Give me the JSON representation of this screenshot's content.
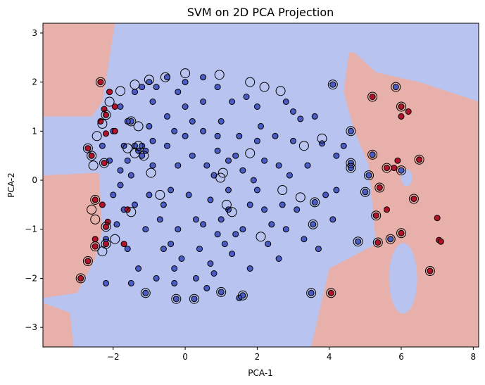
{
  "chart_data": {
    "type": "scatter",
    "title": "SVM on 2D PCA Projection",
    "xlabel": "PCA-1",
    "ylabel": "PCA-2",
    "xlim": [
      -3.95,
      8.15
    ],
    "ylim": [
      -3.4,
      3.2
    ],
    "xticks": [
      -2,
      0,
      2,
      4,
      6,
      8
    ],
    "yticks": [
      -3,
      -2,
      -1,
      0,
      1,
      2,
      3
    ],
    "grid": false,
    "legend": "none",
    "colors": {
      "region_positive": "#e8b0ab",
      "region_negative": "#b8c4ef",
      "class_negative": "#4a5bc4",
      "class_positive": "#b3122b",
      "support_ring": "#000000"
    },
    "cluster_positive_regions": [
      {
        "shape": "left-top-corner",
        "points": [
          [
            -3.95,
            3.2
          ],
          [
            -1.95,
            3.2
          ],
          [
            -2.1,
            2.5
          ],
          [
            -2.3,
            1.6
          ],
          [
            -2.6,
            1.3
          ],
          [
            -3.95,
            1.3
          ]
        ]
      },
      {
        "shape": "left-middle-lower",
        "points": [
          [
            -3.95,
            0.1
          ],
          [
            -2.4,
            0.15
          ],
          [
            -2.3,
            -1.0
          ],
          [
            -2.5,
            -1.6
          ],
          [
            -3.0,
            -2.3
          ],
          [
            -3.95,
            -2.4
          ]
        ]
      },
      {
        "shape": "bottom-left",
        "points": [
          [
            -3.95,
            -3.4
          ],
          [
            -3.95,
            -2.5
          ],
          [
            -3.2,
            -2.7
          ],
          [
            -3.1,
            -3.4
          ]
        ]
      },
      {
        "shape": "right-side",
        "points": [
          [
            4.7,
            2.6
          ],
          [
            5.3,
            2.2
          ],
          [
            6.5,
            2.0
          ],
          [
            8.15,
            1.6
          ],
          [
            8.15,
            -3.4
          ],
          [
            3.5,
            -3.4
          ],
          [
            4.0,
            -1.8
          ],
          [
            5.3,
            -1.3
          ],
          [
            5.1,
            0.3
          ],
          [
            4.7,
            1.0
          ],
          [
            4.4,
            1.8
          ],
          [
            4.55,
            2.6
          ]
        ]
      }
    ],
    "series": [
      {
        "class": "negative",
        "points": [
          [
            4.1,
            1.95
          ],
          [
            4.6,
            1.0
          ],
          [
            5.2,
            0.52
          ],
          [
            5.1,
            0.1
          ],
          [
            4.6,
            0.35
          ],
          [
            5.0,
            -0.24
          ],
          [
            4.8,
            -1.25
          ],
          [
            3.55,
            -0.9
          ],
          [
            3.6,
            -0.45
          ],
          [
            3.5,
            -2.3
          ],
          [
            4.6,
            0.25
          ],
          [
            5.85,
            1.9
          ],
          [
            6.0,
            0.2
          ],
          [
            5.7,
            -1.2
          ],
          [
            1.6,
            -2.35
          ],
          [
            -0.25,
            -2.42
          ],
          [
            0.25,
            -2.42
          ],
          [
            -1.1,
            -2.3
          ],
          [
            1.0,
            -2.28
          ],
          [
            1.5,
            -2.4
          ],
          [
            3.8,
            0.75
          ],
          [
            4.2,
            0.5
          ],
          [
            3.9,
            -0.3
          ],
          [
            4.1,
            -0.8
          ],
          [
            3.2,
            1.25
          ],
          [
            3.0,
            0.8
          ],
          [
            3.3,
            -1.2
          ],
          [
            2.6,
            -1.6
          ],
          [
            2.8,
            1.6
          ],
          [
            2.7,
            -0.5
          ],
          [
            2.0,
            1.5
          ],
          [
            2.2,
            0.4
          ],
          [
            2.4,
            -0.9
          ],
          [
            1.8,
            -1.8
          ],
          [
            2.0,
            -0.2
          ],
          [
            1.5,
            0.9
          ],
          [
            1.2,
            -0.6
          ],
          [
            1.7,
            1.7
          ],
          [
            0.9,
            1.9
          ],
          [
            0.5,
            2.1
          ],
          [
            0.0,
            2.0
          ],
          [
            -0.5,
            2.1
          ],
          [
            -1.0,
            2.0
          ],
          [
            -1.4,
            1.8
          ],
          [
            -1.8,
            1.5
          ],
          [
            -2.0,
            1.0
          ],
          [
            -2.1,
            0.4
          ],
          [
            -2.0,
            -0.3
          ],
          [
            -1.9,
            -0.9
          ],
          [
            -1.6,
            -1.4
          ],
          [
            -1.3,
            -1.8
          ],
          [
            -0.8,
            -2.0
          ],
          [
            -0.3,
            -2.1
          ],
          [
            0.3,
            -2.0
          ],
          [
            0.8,
            -1.9
          ],
          [
            1.3,
            -1.5
          ],
          [
            1.6,
            -1.0
          ],
          [
            1.9,
            0.0
          ],
          [
            1.4,
            0.5
          ],
          [
            1.0,
            1.2
          ],
          [
            0.5,
            1.6
          ],
          [
            0.0,
            1.5
          ],
          [
            -0.5,
            1.3
          ],
          [
            -1.0,
            1.1
          ],
          [
            -1.4,
            0.7
          ],
          [
            -1.5,
            0.1
          ],
          [
            -1.4,
            -0.5
          ],
          [
            -1.1,
            -1.0
          ],
          [
            -0.6,
            -1.4
          ],
          [
            -0.1,
            -1.6
          ],
          [
            0.4,
            -1.4
          ],
          [
            0.9,
            -1.1
          ],
          [
            1.2,
            -0.2
          ],
          [
            0.9,
            0.6
          ],
          [
            0.5,
            1.0
          ],
          [
            0.0,
            0.9
          ],
          [
            -0.5,
            0.7
          ],
          [
            -0.9,
            0.3
          ],
          [
            -1.0,
            -0.3
          ],
          [
            -0.7,
            -0.8
          ],
          [
            -0.2,
            -1.0
          ],
          [
            0.3,
            -0.8
          ],
          [
            0.7,
            -0.4
          ],
          [
            0.6,
            0.3
          ],
          [
            0.2,
            0.5
          ],
          [
            -0.2,
            0.3
          ],
          [
            -0.4,
            -0.2
          ],
          [
            0.1,
            -0.3
          ],
          [
            -1.2,
            0.7
          ],
          [
            -1.3,
            0.6
          ],
          [
            -1.5,
            1.2
          ],
          [
            -1.6,
            1.2
          ],
          [
            -1.1,
            0.6
          ],
          [
            -0.9,
            0.8
          ],
          [
            -2.2,
            -1.2
          ],
          [
            -2.3,
            0.7
          ],
          [
            -1.7,
            0.7
          ],
          [
            -1.2,
            0.5
          ],
          [
            2.5,
            0.9
          ],
          [
            3.4,
            0.3
          ],
          [
            3.1,
            -0.6
          ],
          [
            2.9,
            0.1
          ],
          [
            2.3,
            -1.3
          ],
          [
            2.1,
            1.1
          ],
          [
            1.1,
            -1.3
          ],
          [
            0.7,
            -1.7
          ],
          [
            1.3,
            1.6
          ],
          [
            -0.2,
            1.8
          ],
          [
            -0.9,
            1.6
          ],
          [
            -1.7,
            -0.6
          ],
          [
            -1.8,
            0.2
          ],
          [
            -0.3,
            -1.8
          ],
          [
            0.6,
            -2.2
          ],
          [
            -1.5,
            -2.1
          ],
          [
            -2.2,
            -2.1
          ],
          [
            3.7,
            -1.4
          ],
          [
            3.6,
            1.3
          ],
          [
            4.2,
            -0.2
          ],
          [
            4.4,
            0.7
          ],
          [
            -0.6,
            -0.5
          ],
          [
            0.8,
            0.1
          ],
          [
            1.0,
            -0.8
          ],
          [
            1.6,
            0.2
          ],
          [
            1.8,
            -0.5
          ],
          [
            2.2,
            -0.6
          ],
          [
            2.6,
            0.3
          ],
          [
            -0.8,
            1.9
          ],
          [
            -1.2,
            1.9
          ],
          [
            0.2,
            1.2
          ],
          [
            -0.3,
            1.0
          ],
          [
            0.9,
            0.9
          ],
          [
            1.2,
            0.4
          ],
          [
            -1.6,
            0.4
          ],
          [
            -1.8,
            -0.1
          ],
          [
            -0.4,
            -1.3
          ],
          [
            0.5,
            -0.9
          ],
          [
            1.4,
            -1.1
          ],
          [
            2.0,
            0.8
          ],
          [
            2.8,
            -1.0
          ],
          [
            3.0,
            1.4
          ]
        ]
      },
      {
        "class": "positive",
        "points": [
          [
            5.2,
            1.7
          ],
          [
            6.0,
            1.5
          ],
          [
            6.2,
            1.4
          ],
          [
            6.0,
            1.3
          ],
          [
            5.6,
            0.25
          ],
          [
            5.4,
            -0.15
          ],
          [
            5.9,
            0.4
          ],
          [
            6.5,
            0.42
          ],
          [
            6.35,
            -0.38
          ],
          [
            5.8,
            0.25
          ],
          [
            5.6,
            -0.6
          ],
          [
            5.3,
            -0.72
          ],
          [
            6.0,
            -1.08
          ],
          [
            5.35,
            -1.27
          ],
          [
            7.0,
            -0.77
          ],
          [
            7.05,
            -1.22
          ],
          [
            7.1,
            -1.25
          ],
          [
            6.8,
            -1.85
          ],
          [
            4.05,
            -2.3
          ],
          [
            -2.35,
            1.2
          ],
          [
            -2.2,
            1.33
          ],
          [
            -2.25,
            1.45
          ],
          [
            -2.2,
            0.95
          ],
          [
            -1.95,
            1.0
          ],
          [
            -1.95,
            1.5
          ],
          [
            -2.1,
            1.8
          ],
          [
            -2.35,
            2.0
          ],
          [
            -2.1,
            1.8
          ],
          [
            -2.25,
            0.35
          ],
          [
            -2.3,
            -0.5
          ],
          [
            -2.5,
            -0.4
          ],
          [
            -2.5,
            -1.2
          ],
          [
            -2.5,
            -1.35
          ],
          [
            -2.6,
            0.5
          ],
          [
            -2.2,
            -0.95
          ],
          [
            -2.2,
            -1.3
          ],
          [
            -2.7,
            0.65
          ],
          [
            -2.9,
            -2.0
          ],
          [
            -2.7,
            -1.65
          ],
          [
            -1.7,
            -1.3
          ],
          [
            -1.6,
            -0.6
          ],
          [
            -2.15,
            -0.85
          ]
        ]
      }
    ],
    "support_vectors": [
      [
        4.1,
        1.95
      ],
      [
        4.6,
        1.0
      ],
      [
        5.2,
        0.52
      ],
      [
        5.1,
        0.1
      ],
      [
        4.6,
        0.35
      ],
      [
        5.0,
        -0.24
      ],
      [
        4.8,
        -1.25
      ],
      [
        3.55,
        -0.9
      ],
      [
        3.6,
        -0.45
      ],
      [
        3.5,
        -2.3
      ],
      [
        4.6,
        0.25
      ],
      [
        5.85,
        1.9
      ],
      [
        6.0,
        0.2
      ],
      [
        5.7,
        -1.2
      ],
      [
        1.6,
        -2.35
      ],
      [
        -0.25,
        -2.42
      ],
      [
        0.25,
        -2.42
      ],
      [
        -1.1,
        -2.3
      ],
      [
        1.0,
        -2.28
      ],
      [
        5.2,
        1.7
      ],
      [
        6.0,
        1.5
      ],
      [
        5.6,
        0.25
      ],
      [
        5.4,
        -0.15
      ],
      [
        6.5,
        0.42
      ],
      [
        6.35,
        -0.38
      ],
      [
        5.3,
        -0.72
      ],
      [
        6.0,
        -1.08
      ],
      [
        5.35,
        -1.27
      ],
      [
        6.8,
        -1.85
      ],
      [
        4.05,
        -2.3
      ],
      [
        -2.35,
        2.0
      ],
      [
        -2.2,
        1.33
      ],
      [
        -2.25,
        0.35
      ],
      [
        -2.5,
        -0.4
      ],
      [
        -2.5,
        -1.35
      ],
      [
        -2.6,
        0.5
      ],
      [
        -2.2,
        -0.95
      ],
      [
        -2.2,
        -1.3
      ],
      [
        -2.7,
        0.65
      ],
      [
        -2.9,
        -2.0
      ],
      [
        -2.7,
        -1.65
      ],
      [
        2.65,
        1.82
      ],
      [
        2.2,
        1.9
      ],
      [
        1.8,
        2.0
      ],
      [
        0.95,
        2.15
      ],
      [
        0.0,
        2.18
      ],
      [
        -0.55,
        2.1
      ],
      [
        -1.0,
        2.05
      ],
      [
        -1.4,
        1.95
      ],
      [
        -1.8,
        1.82
      ],
      [
        -2.1,
        1.6
      ],
      [
        -2.3,
        1.15
      ],
      [
        -2.45,
        0.9
      ],
      [
        -2.55,
        0.3
      ],
      [
        -2.6,
        -0.6
      ],
      [
        -2.5,
        -0.8
      ],
      [
        -2.3,
        -1.45
      ],
      [
        -1.95,
        -1.2
      ],
      [
        -1.5,
        -0.65
      ],
      [
        -1.3,
        0.7
      ],
      [
        -1.4,
        0.55
      ],
      [
        -1.6,
        0.65
      ],
      [
        -1.3,
        1.1
      ],
      [
        -1.5,
        1.2
      ],
      [
        -1.15,
        0.5
      ],
      [
        0.98,
        0.05
      ],
      [
        1.05,
        0.15
      ],
      [
        1.15,
        -0.5
      ],
      [
        1.3,
        -0.65
      ],
      [
        -0.7,
        -0.3
      ],
      [
        -0.95,
        0.15
      ],
      [
        2.1,
        -1.15
      ],
      [
        3.2,
        -0.35
      ],
      [
        3.3,
        0.7
      ],
      [
        3.8,
        0.85
      ],
      [
        1.8,
        0.55
      ],
      [
        2.7,
        -0.2
      ]
    ]
  }
}
